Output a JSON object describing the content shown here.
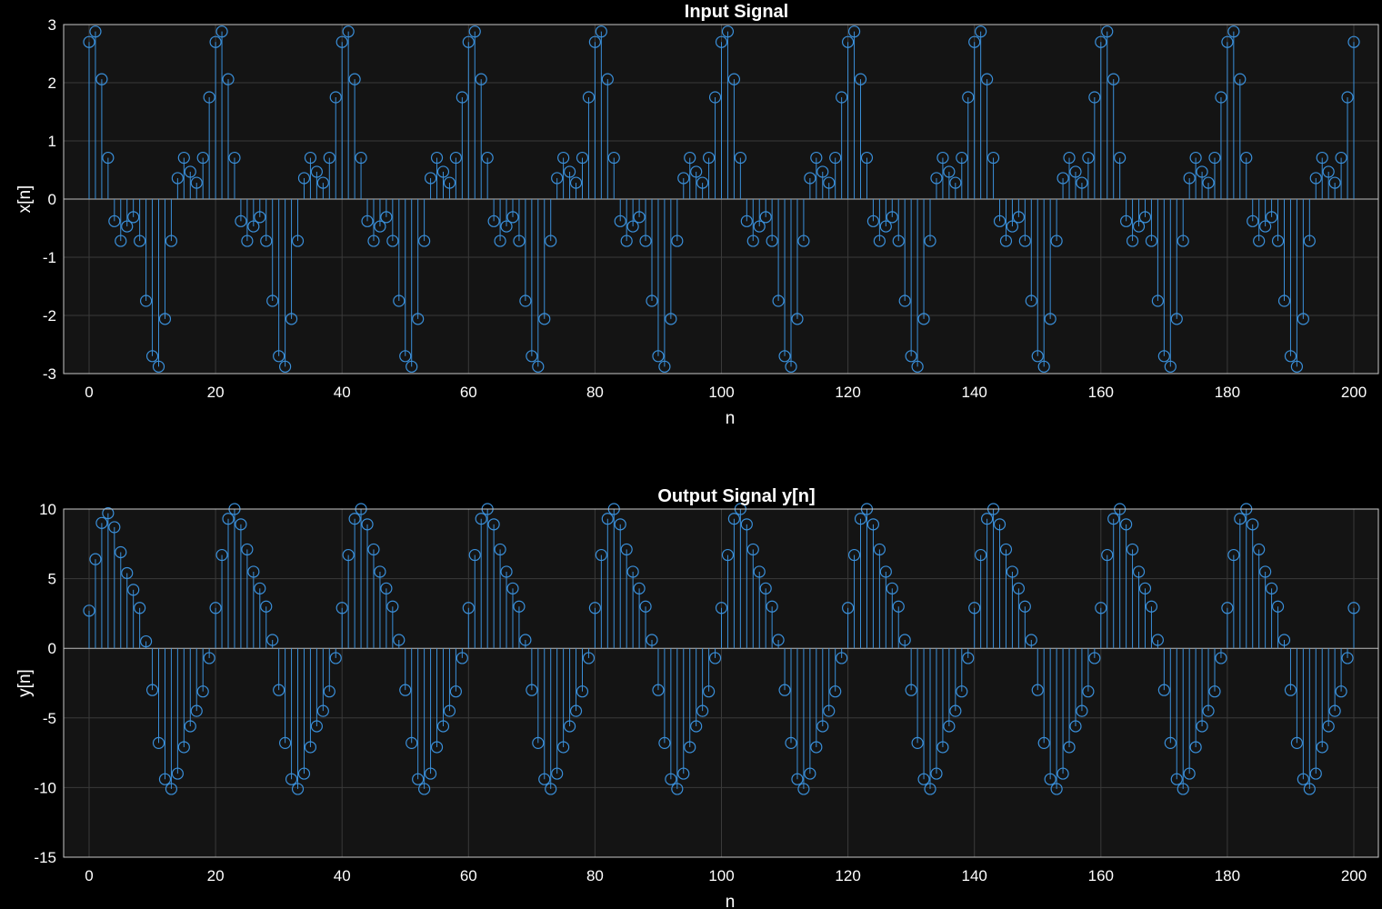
{
  "figure": {
    "background": "#000000",
    "axes_background": "#141414",
    "grid_color": "#3a3a3a",
    "axis_color": "#c8c8c8",
    "stem_color": "#3a8fd9"
  },
  "chart_data": [
    {
      "type": "stem",
      "title": "Input Signal",
      "xlabel": "n",
      "ylabel": "x[n]",
      "xlim": [
        0,
        200
      ],
      "ylim": [
        -3,
        3
      ],
      "grid": true,
      "xticks": [
        0,
        20,
        40,
        60,
        80,
        100,
        120,
        140,
        160,
        180,
        200
      ],
      "yticks": [
        -3,
        -2,
        -1,
        0,
        1,
        2,
        3
      ],
      "xtick_labels": [
        "0",
        "20",
        "40",
        "60",
        "80",
        "100",
        "120",
        "140",
        "160",
        "180",
        "200"
      ],
      "ytick_labels": [
        "-3",
        "-2",
        "-1",
        "0",
        "1",
        "2",
        "3"
      ],
      "period": 20,
      "n_range": [
        0,
        200
      ],
      "one_period_values": [
        2.7,
        2.88,
        2.06,
        0.71,
        -0.38,
        -0.72,
        -0.47,
        -0.31,
        -0.72,
        -1.75,
        -2.7,
        -2.88,
        -2.06,
        -0.72,
        0.36,
        0.71,
        0.47,
        0.28,
        0.71,
        1.75
      ]
    },
    {
      "type": "stem",
      "title": "Output Signal y[n]",
      "xlabel": "n",
      "ylabel": "y[n]",
      "xlim": [
        0,
        200
      ],
      "ylim": [
        -15,
        10
      ],
      "grid": true,
      "xticks": [
        0,
        20,
        40,
        60,
        80,
        100,
        120,
        140,
        160,
        180,
        200
      ],
      "yticks": [
        -15,
        -10,
        -5,
        0,
        5,
        10
      ],
      "xtick_labels": [
        "0",
        "20",
        "40",
        "60",
        "80",
        "100",
        "120",
        "140",
        "160",
        "180",
        "200"
      ],
      "ytick_labels": [
        "-15",
        "-10",
        "-5",
        "0",
        "5",
        "10"
      ],
      "period": 20,
      "n_range": [
        0,
        200
      ],
      "first_period_values": [
        2.7,
        6.4,
        9.0,
        9.7,
        8.7,
        6.9,
        5.4,
        4.2,
        2.9,
        0.5,
        -3.0,
        -6.8,
        -9.4,
        -10.1,
        -9.0,
        -7.1,
        -5.6,
        -4.5,
        -3.1,
        -0.7
      ],
      "one_period_values": [
        2.9,
        6.7,
        9.3,
        10.0,
        8.9,
        7.1,
        5.5,
        4.3,
        3.0,
        0.6,
        -3.0,
        -6.8,
        -9.4,
        -10.1,
        -9.0,
        -7.1,
        -5.6,
        -4.5,
        -3.1,
        -0.7
      ]
    }
  ]
}
